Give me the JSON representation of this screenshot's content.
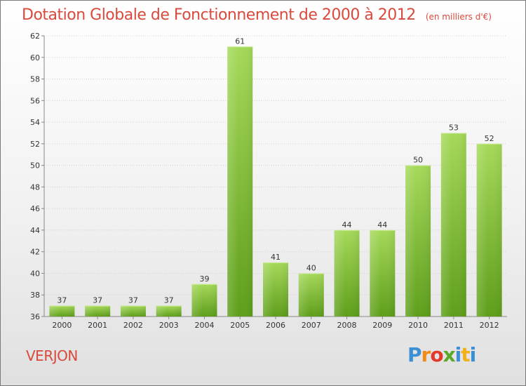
{
  "header": {
    "title": "Dotation Globale de Fonctionnement de 2000 à 2012",
    "unit": "(en milliers d'€)"
  },
  "footer": {
    "commune": "VERJON",
    "brand": "Proxiti"
  },
  "colors": {
    "title": "#d74a3c",
    "bar_top": "#a5d95a",
    "bar_bottom": "#5e9e1a"
  },
  "chart_data": {
    "type": "bar",
    "categories": [
      "2000",
      "2001",
      "2002",
      "2003",
      "2004",
      "2005",
      "2006",
      "2007",
      "2008",
      "2009",
      "2010",
      "2011",
      "2012"
    ],
    "values": [
      37,
      37,
      37,
      37,
      39,
      61,
      41,
      40,
      44,
      44,
      50,
      53,
      52
    ],
    "title": "Dotation Globale de Fonctionnement de 2000 à 2012",
    "subtitle": "(en milliers d'€)",
    "xlabel": "",
    "ylabel": "",
    "ylim": [
      36,
      62
    ],
    "yticks": [
      36,
      38,
      40,
      42,
      44,
      46,
      48,
      50,
      52,
      54,
      56,
      58,
      60,
      62
    ],
    "grid": true,
    "data_labels": true
  }
}
